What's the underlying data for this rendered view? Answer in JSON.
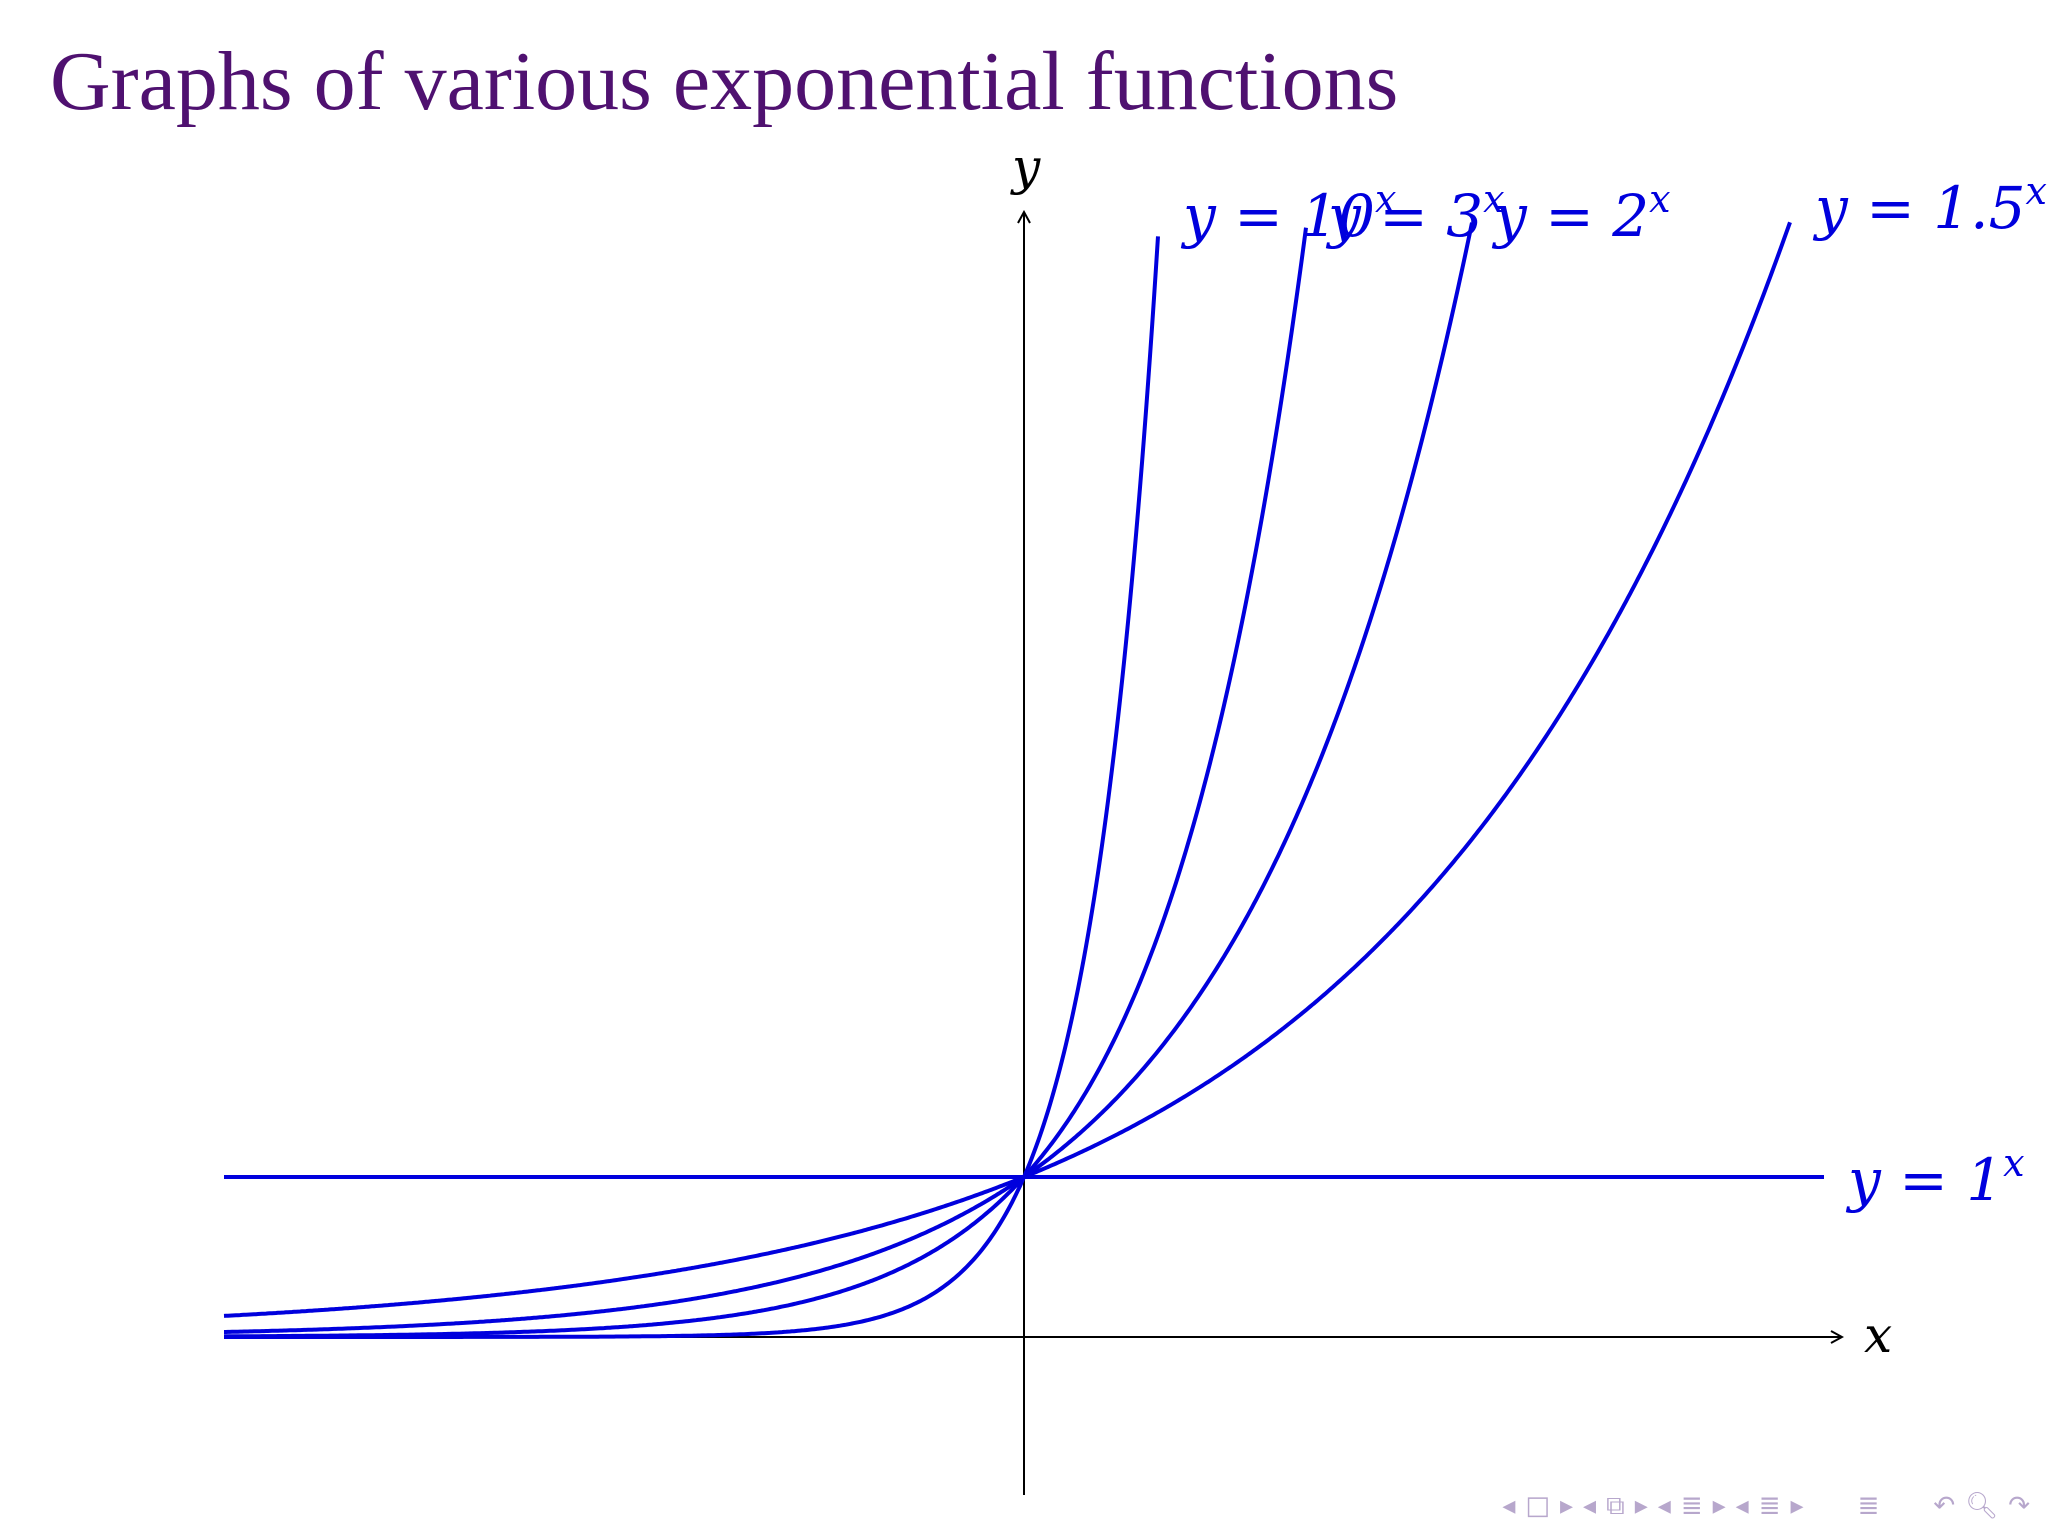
{
  "title": "Graphs of various exponential functions",
  "colors": {
    "title": "#4f1170",
    "curve": "#0000dd",
    "axis": "#000000",
    "nav": "#b7a7cc"
  },
  "chart_data": {
    "type": "line",
    "xlabel": "x",
    "ylabel": "y",
    "xlim": [
      -5,
      5
    ],
    "ylim": [
      -1,
      6.5
    ],
    "grid": false,
    "series": [
      {
        "name": "y = 10^x",
        "base": 10,
        "label": "y = 10",
        "exp": "x"
      },
      {
        "name": "y = 3^x",
        "base": 3,
        "label": "y = 3",
        "exp": "x"
      },
      {
        "name": "y = 2^x",
        "base": 2,
        "label": "y = 2",
        "exp": "x"
      },
      {
        "name": "y = 1.5^x",
        "base": 1.5,
        "label": "y = 1.5",
        "exp": "x"
      },
      {
        "name": "y = 1^x",
        "base": 1,
        "label": "y = 1",
        "exp": "x"
      }
    ]
  },
  "nav": {
    "prev_frame": "◂",
    "frame": "□",
    "next_frame": "▸",
    "prev_sub": "◂",
    "sub": "⧉",
    "next_sub": "▸",
    "prev_sec": "◂",
    "sec": "≣",
    "next_sec": "▸",
    "prev_subsec": "◂",
    "subsec": "≣",
    "next_subsec": "▸",
    "toc": "≣",
    "back": "↶",
    "search": "🔍︎",
    "forward": "↷"
  }
}
